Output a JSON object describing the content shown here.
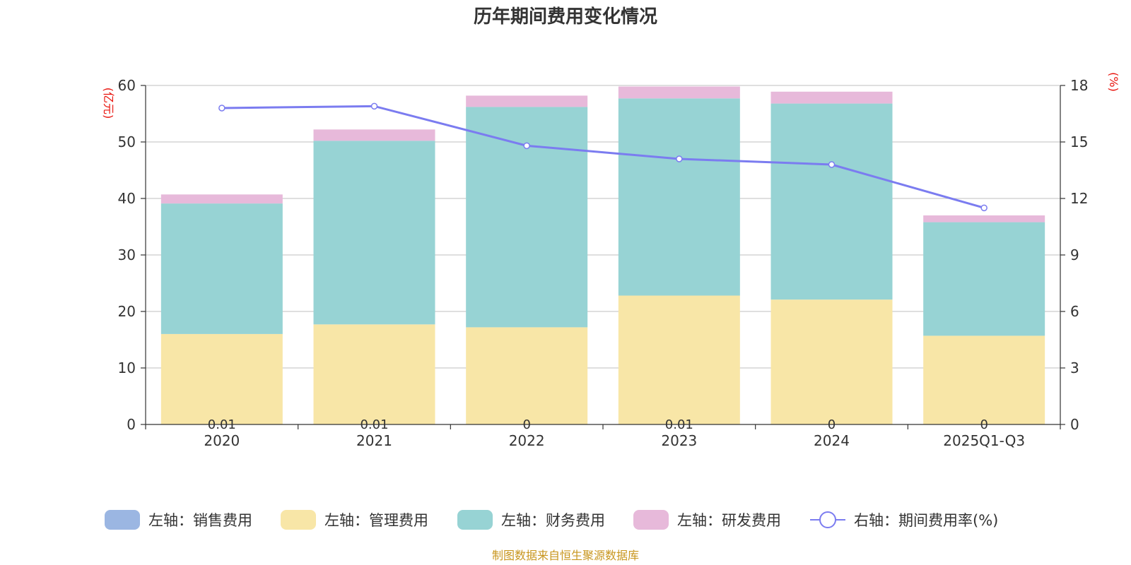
{
  "chart_data": {
    "type": "bar",
    "title": "历年期间费用变化情况",
    "categories": [
      "2020",
      "2021",
      "2022",
      "2023",
      "2024",
      "2025Q1-Q3"
    ],
    "series": [
      {
        "name": "左轴：销售费用",
        "axis": "left",
        "kind": "bar",
        "color": "#9bb6e2",
        "values": [
          0.01,
          0.01,
          0,
          0.01,
          0,
          0
        ],
        "labels": [
          "0.01",
          "0.01",
          "0",
          "0.01",
          "0",
          "0"
        ]
      },
      {
        "name": "左轴：管理费用",
        "axis": "left",
        "kind": "bar",
        "color": "#f8e6a7",
        "values": [
          16.0,
          17.7,
          17.2,
          22.8,
          22.1,
          15.7
        ]
      },
      {
        "name": "左轴：财务费用",
        "axis": "left",
        "kind": "bar",
        "color": "#97d3d4",
        "values": [
          23.1,
          32.5,
          39.0,
          34.9,
          34.7,
          20.1
        ]
      },
      {
        "name": "左轴：研发费用",
        "axis": "left",
        "kind": "bar",
        "color": "#e7b9da",
        "values": [
          1.6,
          2.0,
          2.0,
          2.1,
          2.1,
          1.2
        ]
      },
      {
        "name": "右轴：期间费用率(%)",
        "axis": "right",
        "kind": "line",
        "color": "#7b7cf0",
        "values": [
          16.8,
          16.9,
          14.8,
          14.1,
          13.8,
          11.5
        ]
      }
    ],
    "left_axis": {
      "unit": "(亿元)",
      "min": 0,
      "max": 60,
      "ticks": [
        0,
        10,
        20,
        30,
        40,
        50,
        60
      ]
    },
    "right_axis": {
      "unit": "(%)",
      "min": 0,
      "max": 18,
      "ticks": [
        0,
        3,
        6,
        9,
        12,
        15,
        18
      ]
    },
    "grid": true,
    "legend_position": "bottom",
    "source": "制图数据来自恒生聚源数据库"
  }
}
